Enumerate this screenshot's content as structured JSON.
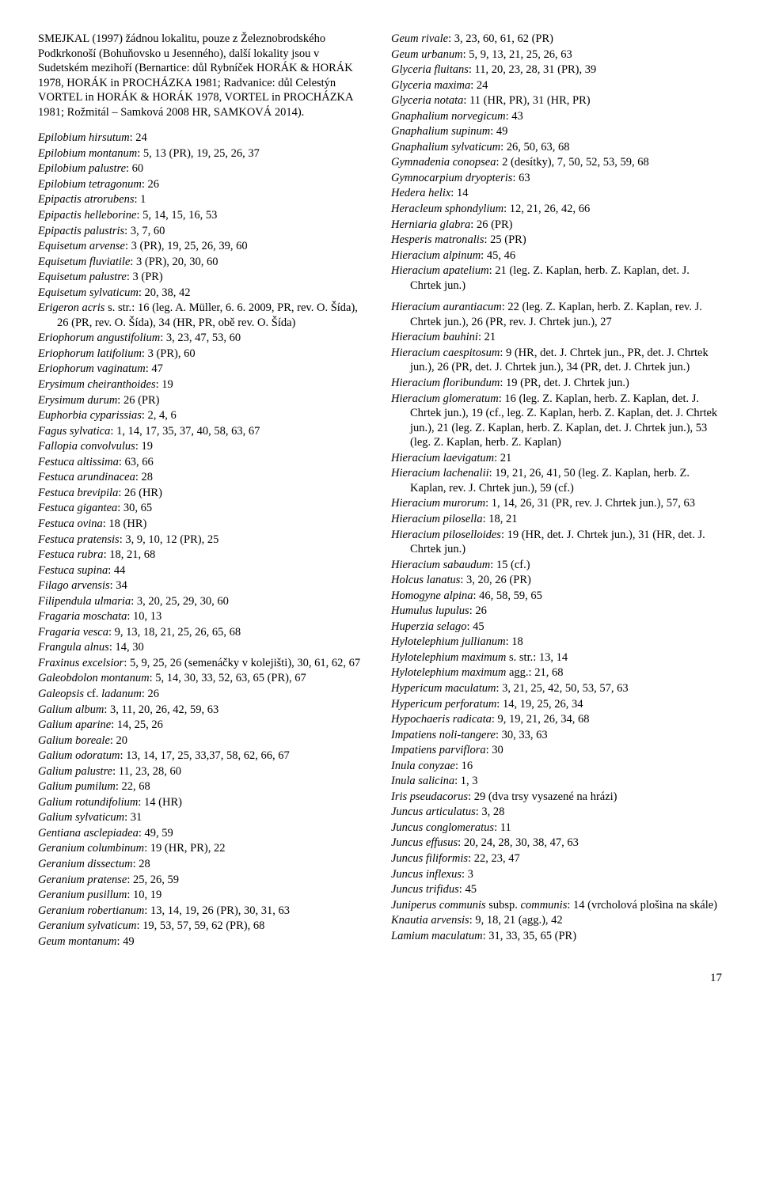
{
  "intro": "SMEJKAL (1997) žádnou lokalitu, pouze z Železnobrodského Podkrkonoší (Bohuňovsko u Jesenného), další lokality jsou v Sudetském mezihoří (Bernartice: důl Rybníček HORÁK & HORÁK 1978, HORÁK in PROCHÁZKA 1981; Radvanice: důl Celestýn VORTEL in HORÁK & HORÁK 1978, VORTEL in PROCHÁZKA 1981; Rožmitál – Samková 2008 HR, SAMKOVÁ 2014).",
  "entries": [
    [
      "Epilobium hirsutum",
      ": 24"
    ],
    [
      "Epilobium montanum",
      ": 5, 13 (PR), 19, 25, 26, 37"
    ],
    [
      "Epilobium palustre",
      ": 60"
    ],
    [
      "Epilobium tetragonum",
      ": 26"
    ],
    [
      "Epipactis atrorubens",
      ": 1"
    ],
    [
      "Epipactis helleborine",
      ": 5, 14, 15, 16, 53"
    ],
    [
      "Epipactis palustris",
      ": 3, 7, 60"
    ],
    [
      "Equisetum arvense",
      ": 3 (PR), 19, 25, 26, 39, 60"
    ],
    [
      "Equisetum fluviatile",
      ": 3 (PR), 20, 30, 60"
    ],
    [
      "Equisetum palustre",
      ": 3 (PR)"
    ],
    [
      "Equisetum sylvaticum",
      ": 20, 38, 42"
    ],
    [
      "Erigeron acris",
      " s. str.: 16 (leg. A. Müller, 6. 6. 2009, PR, rev. O. Šída), 26 (PR, rev. O. Šída), 34 (HR, PR, obě rev. O. Šída)"
    ],
    [
      "Eriophorum angustifolium",
      ": 3, 23, 47, 53, 60"
    ],
    [
      "Eriophorum latifolium",
      ": 3 (PR), 60"
    ],
    [
      "Eriophorum vaginatum",
      ": 47"
    ],
    [
      "Erysimum cheiranthoides",
      ": 19"
    ],
    [
      "Erysimum durum",
      ": 26 (PR)"
    ],
    [
      "Euphorbia cyparissias",
      ": 2, 4, 6"
    ],
    [
      "Fagus sylvatica",
      ": 1, 14, 17, 35, 37, 40, 58, 63, 67"
    ],
    [
      "Fallopia convolvulus",
      ": 19"
    ],
    [
      "Festuca altissima",
      ": 63, 66"
    ],
    [
      "Festuca arundinacea",
      ": 28"
    ],
    [
      "Festuca brevipila",
      ": 26 (HR)"
    ],
    [
      "Festuca gigantea",
      ": 30, 65"
    ],
    [
      "Festuca ovina",
      ": 18 (HR)"
    ],
    [
      "Festuca pratensis",
      ": 3, 9, 10, 12 (PR), 25"
    ],
    [
      "Festuca rubra",
      ": 18, 21, 68"
    ],
    [
      "Festuca supina",
      ": 44"
    ],
    [
      "Filago arvensis",
      ": 34"
    ],
    [
      "Filipendula ulmaria",
      ": 3, 20, 25, 29, 30, 60"
    ],
    [
      "Fragaria moschata",
      ": 10, 13"
    ],
    [
      "Fragaria vesca",
      ": 9, 13, 18, 21, 25, 26, 65, 68"
    ],
    [
      "Frangula alnus",
      ": 14, 30"
    ],
    [
      "Fraxinus excelsior",
      ": 5, 9, 25, 26 (semenáčky v kolejišti), 30, 61, 62, 67"
    ],
    [
      "Galeobdolon montanum",
      ": 5, 14, 30, 33, 52, 63, 65 (PR), 67"
    ],
    [
      "Galeopsis",
      " cf. ",
      "ladanum",
      ": 26"
    ],
    [
      "Galium album",
      ": 3, 11, 20, 26, 42, 59, 63"
    ],
    [
      "Galium aparine",
      ": 14, 25, 26"
    ],
    [
      "Galium boreale",
      ": 20"
    ],
    [
      "Galium odoratum",
      ": 13, 14, 17, 25, 33,37, 58, 62, 66, 67"
    ],
    [
      "Galium palustre",
      ": 11, 23, 28, 60"
    ],
    [
      "Galium pumilum",
      ": 22, 68"
    ],
    [
      "Galium rotundifolium",
      ": 14 (HR)"
    ],
    [
      "Galium sylvaticum",
      ": 31"
    ],
    [
      "Gentiana asclepiadea",
      ": 49, 59"
    ],
    [
      "Geranium columbinum",
      ": 19 (HR, PR), 22"
    ],
    [
      "Geranium dissectum",
      ": 28"
    ],
    [
      "Geranium pratense",
      ": 25, 26, 59"
    ],
    [
      "Geranium pusillum",
      ": 10, 19"
    ],
    [
      "Geranium robertianum",
      ": 13, 14, 19, 26 (PR), 30, 31, 63"
    ],
    [
      "Geranium sylvaticum",
      ": 19, 53, 57, 59, 62 (PR), 68"
    ],
    [
      "Geum montanum",
      ": 49"
    ],
    [
      "Geum rivale",
      ": 3, 23, 60, 61, 62 (PR)"
    ],
    [
      "Geum urbanum",
      ": 5, 9, 13, 21, 25, 26, 63"
    ],
    [
      "Glyceria fluitans",
      ": 11, 20, 23, 28, 31 (PR), 39"
    ],
    [
      "Glyceria maxima",
      ": 24"
    ],
    [
      "Glyceria notata",
      ": 11 (HR, PR), 31 (HR, PR)"
    ],
    [
      "Gnaphalium norvegicum",
      ": 43"
    ],
    [
      "Gnaphalium supinum",
      ": 49"
    ],
    [
      "Gnaphalium sylvaticum",
      ": 26, 50, 63, 68"
    ],
    [
      "Gymnadenia conopsea",
      ": 2 (desítky), 7, 50, 52, 53, 59, 68"
    ],
    [
      "Gymnocarpium dryopteris",
      ": 63"
    ],
    [
      "Hedera helix",
      ": 14"
    ],
    [
      "Heracleum sphondylium",
      ": 12, 21, 26, 42, 66"
    ],
    [
      "Herniaria glabra",
      ": 26 (PR)"
    ],
    [
      "Hesperis matronalis",
      ": 25 (PR)"
    ],
    [
      "Hieracium alpinum",
      ": 45, 46"
    ],
    [
      "Hieracium apatelium",
      ": 21 (leg. Z. Kaplan, herb. Z. Kaplan, det. J. Chrtek jun.)"
    ],
    [
      "",
      ""
    ],
    [
      "Hieracium aurantiacum",
      ": 22 (leg. Z. Kaplan, herb. Z. Kaplan, rev. J. Chrtek jun.), 26 (PR, rev. J. Chrtek jun.), 27"
    ],
    [
      "Hieracium bauhini",
      ": 21"
    ],
    [
      "Hieracium caespitosum",
      ": 9 (HR, det. J. Chrtek jun., PR, det. J. Chrtek jun.), 26 (PR, det. J. Chrtek jun.), 34 (PR, det. J. Chrtek jun.)"
    ],
    [
      "Hieracium floribundum",
      ": 19 (PR, det. J. Chrtek jun.)"
    ],
    [
      "Hieracium glomeratum",
      ": 16 (leg. Z. Kaplan, herb. Z. Kaplan, det. J. Chrtek jun.), 19 (cf., leg. Z. Kaplan, herb. Z. Kaplan, det. J. Chrtek jun.), 21 (leg. Z. Kaplan, herb. Z. Kaplan, det. J. Chrtek jun.), 53 (leg. Z. Kaplan, herb. Z. Kaplan)"
    ],
    [
      "Hieracium laevigatum",
      ": 21"
    ],
    [
      "Hieracium lachenalii",
      ": 19, 21, 26, 41, 50 (leg. Z. Kaplan, herb. Z. Kaplan, rev. J. Chrtek jun.), 59 (cf.)"
    ],
    [
      "Hieracium murorum",
      ": 1, 14, 26, 31 (PR, rev. J. Chrtek jun.), 57, 63"
    ],
    [
      "Hieracium pilosella",
      ": 18, 21"
    ],
    [
      "Hieracium piloselloides",
      ": 19 (HR, det. J. Chrtek jun.), 31 (HR, det. J. Chrtek jun.)"
    ],
    [
      "Hieracium sabaudum",
      ": 15 (cf.)"
    ],
    [
      "Holcus lanatus",
      ": 3, 20, 26 (PR)"
    ],
    [
      "Homogyne alpina",
      ": 46, 58, 59, 65"
    ],
    [
      "Humulus lupulus",
      ": 26"
    ],
    [
      "Huperzia selago",
      ": 45"
    ],
    [
      "Hylotelephium jullianum",
      ": 18"
    ],
    [
      "Hylotelephium maximum",
      " s. str.: 13, 14"
    ],
    [
      "Hylotelephium maximum",
      " agg.: 21, 68"
    ],
    [
      "Hypericum maculatum",
      ": 3, 21, 25, 42, 50, 53, 57, 63"
    ],
    [
      "Hypericum perforatum",
      ": 14, 19, 25, 26, 34"
    ],
    [
      "Hypochaeris radicata",
      ": 9, 19, 21, 26, 34, 68"
    ],
    [
      "Impatiens noli-tangere",
      ": 30, 33, 63"
    ],
    [
      "Impatiens parviflora",
      ": 30"
    ],
    [
      "Inula conyzae",
      ": 16"
    ],
    [
      "Inula salicina",
      ": 1, 3"
    ],
    [
      "Iris pseudacorus",
      ": 29 (dva trsy vysazené na hrázi)"
    ],
    [
      "Juncus articulatus",
      ": 3, 28"
    ],
    [
      "Juncus conglomeratus",
      ": 11"
    ],
    [
      "Juncus effusus",
      ": 20, 24, 28, 30, 38, 47, 63"
    ],
    [
      "Juncus filiformis",
      ": 22, 23, 47"
    ],
    [
      "Juncus inflexus",
      ": 3"
    ],
    [
      "Juncus trifidus",
      ": 45"
    ],
    [
      "Juniperus communis",
      " subsp. ",
      "communis",
      ": 14 (vrcholová plošina na skále)"
    ],
    [
      "Knautia arvensis",
      ": 9, 18, 21 (agg.), 42"
    ],
    [
      "Lamium maculatum",
      ": 31, 33, 35, 65 (PR)"
    ]
  ],
  "page": "17"
}
